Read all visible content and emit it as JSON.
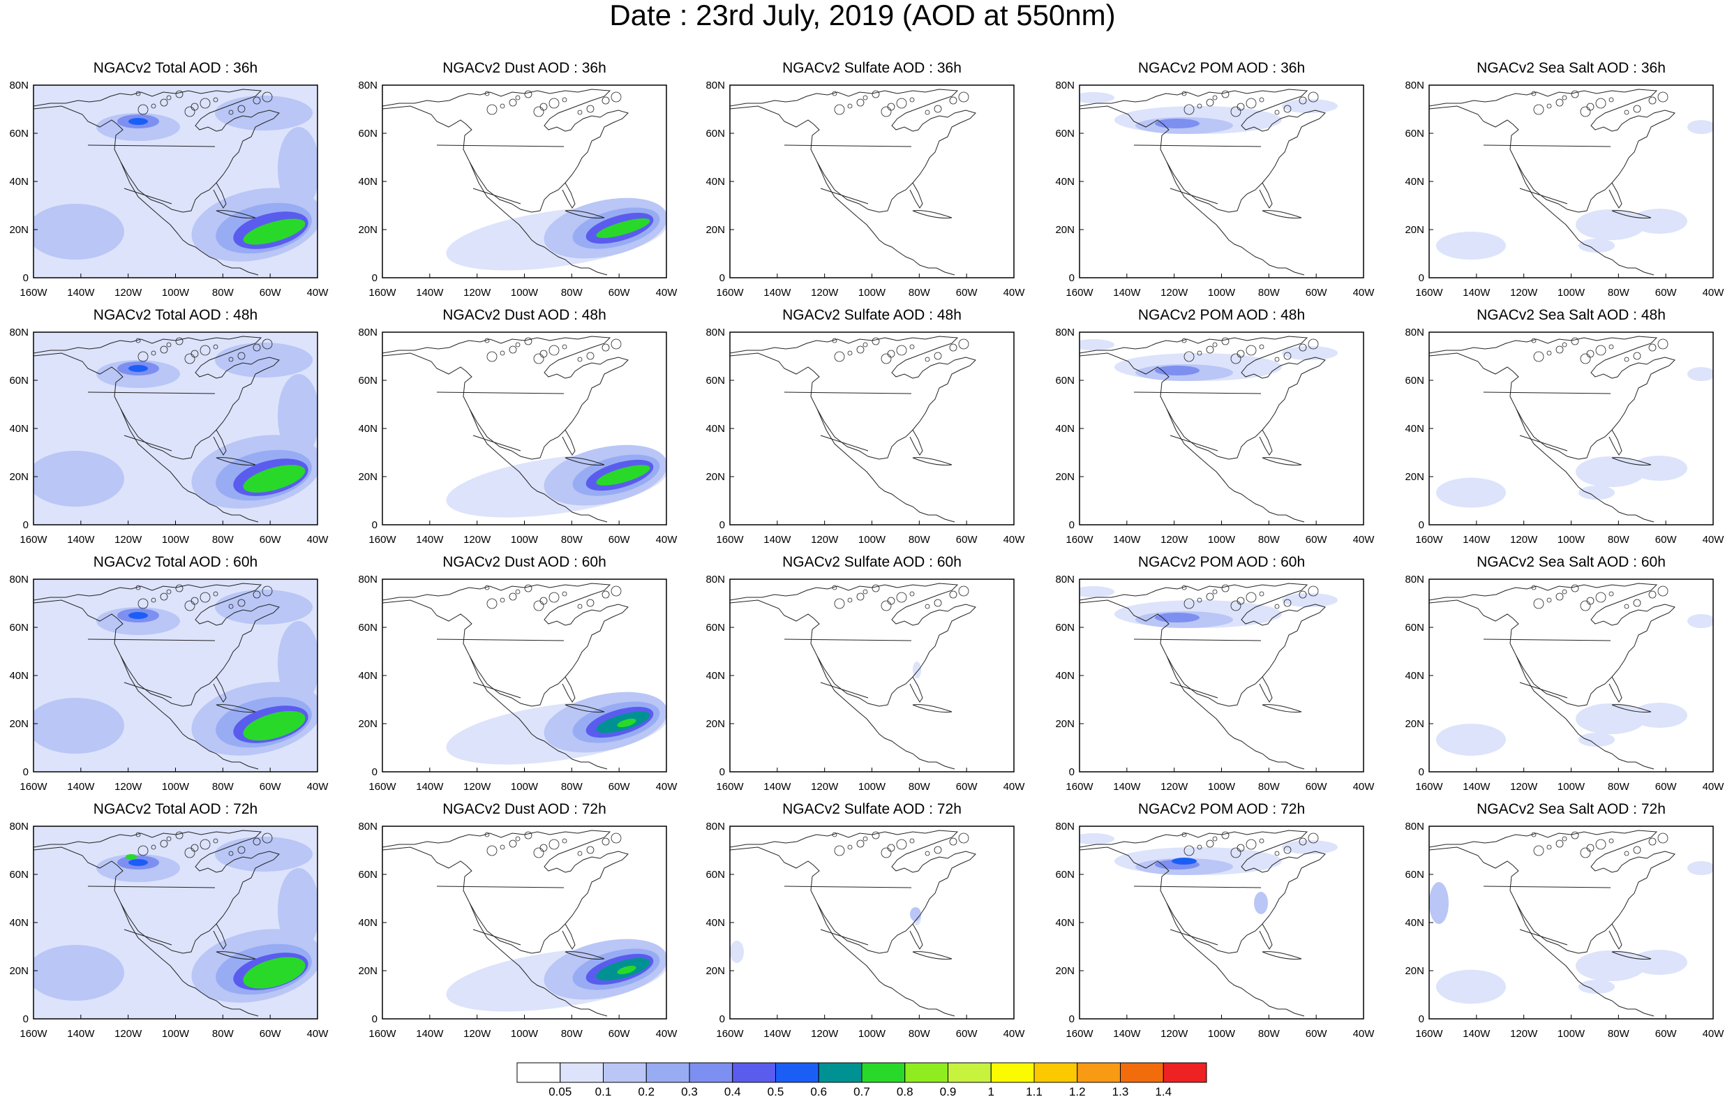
{
  "title": "Date : 23rd July, 2019 (AOD at 550nm)",
  "model": "NGACv2",
  "species": [
    "Total AOD",
    "Dust AOD",
    "Sulfate AOD",
    "POM AOD",
    "Sea Salt AOD"
  ],
  "forecast_hours": [
    "36h",
    "48h",
    "60h",
    "72h"
  ],
  "panel_titles": [
    [
      "NGACv2 Total AOD : 36h",
      "NGACv2 Dust AOD : 36h",
      "NGACv2 Sulfate AOD : 36h",
      "NGACv2 POM AOD : 36h",
      "NGACv2 Sea Salt AOD : 36h"
    ],
    [
      "NGACv2 Total AOD : 48h",
      "NGACv2 Dust AOD : 48h",
      "NGACv2 Sulfate AOD : 48h",
      "NGACv2 POM AOD : 48h",
      "NGACv2 Sea Salt AOD : 48h"
    ],
    [
      "NGACv2 Total AOD : 60h",
      "NGACv2 Dust AOD : 60h",
      "NGACv2 Sulfate AOD : 60h",
      "NGACv2 POM AOD : 60h",
      "NGACv2 Sea Salt AOD : 60h"
    ],
    [
      "NGACv2 Total AOD : 72h",
      "NGACv2 Dust AOD : 72h",
      "NGACv2 Sulfate AOD : 72h",
      "NGACv2 POM AOD : 72h",
      "NGACv2 Sea Salt  AOD : 72h"
    ]
  ],
  "map": {
    "lon_range": [
      -160,
      -40
    ],
    "lat_range": [
      0,
      80
    ],
    "lat_ticks": [
      "0",
      "20N",
      "40N",
      "60N",
      "80N"
    ],
    "lon_ticks": [
      "160W",
      "140W",
      "120W",
      "100W",
      "80W",
      "60W",
      "40W"
    ]
  },
  "colorbar": {
    "levels": [
      "0.05",
      "0.1",
      "0.2",
      "0.3",
      "0.4",
      "0.5",
      "0.6",
      "0.7",
      "0.8",
      "0.9",
      "1",
      "1.1",
      "1.2",
      "1.3",
      "1.4"
    ],
    "colors": [
      "#ffffff",
      "#dce3fb",
      "#b9c6f6",
      "#98acf4",
      "#7d8ff0",
      "#5a5cee",
      "#1a5ef6",
      "#009292",
      "#29d929",
      "#8fec1e",
      "#c7f23d",
      "#fafa00",
      "#fcc800",
      "#f99a14",
      "#f26c0c",
      "#ee2222"
    ]
  },
  "icons": {
    "coastline": "coastline-outline",
    "borders": "country-borders"
  }
}
